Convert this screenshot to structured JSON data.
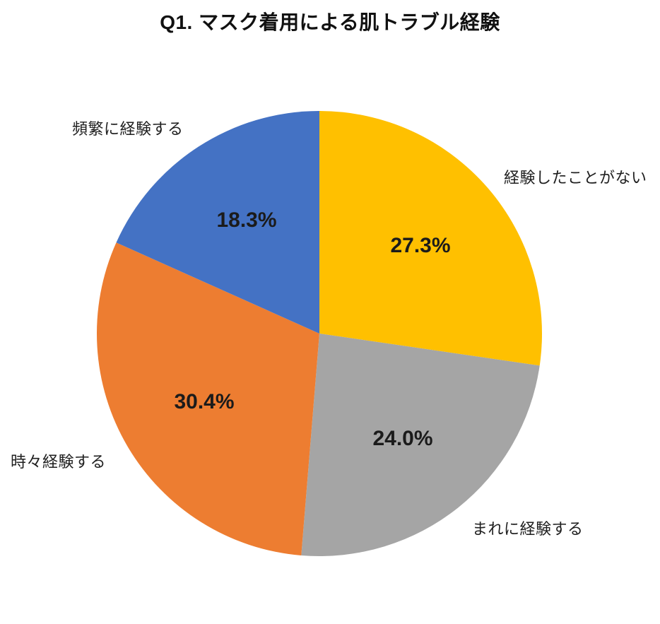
{
  "page": {
    "background_color": "#ffffff"
  },
  "chart_data": {
    "type": "pie",
    "title": "Q1. マスク着用による肌トラブル経験",
    "start_angle_deg": 0,
    "direction": "clockwise",
    "legend": "none",
    "labels_position": "outside",
    "percent_labels_position": "inside",
    "slices": [
      {
        "label": "経験したことがない",
        "value": 27.3,
        "pct_label": "27.3%",
        "color": "#FFC000"
      },
      {
        "label": "まれに経験する",
        "value": 24.0,
        "pct_label": "24.0%",
        "color": "#A5A5A5"
      },
      {
        "label": "時々経験する",
        "value": 30.4,
        "pct_label": "30.4%",
        "color": "#ED7D31"
      },
      {
        "label": "頻繁に経験する",
        "value": 18.3,
        "pct_label": "18.3%",
        "color": "#4472C4"
      }
    ]
  }
}
